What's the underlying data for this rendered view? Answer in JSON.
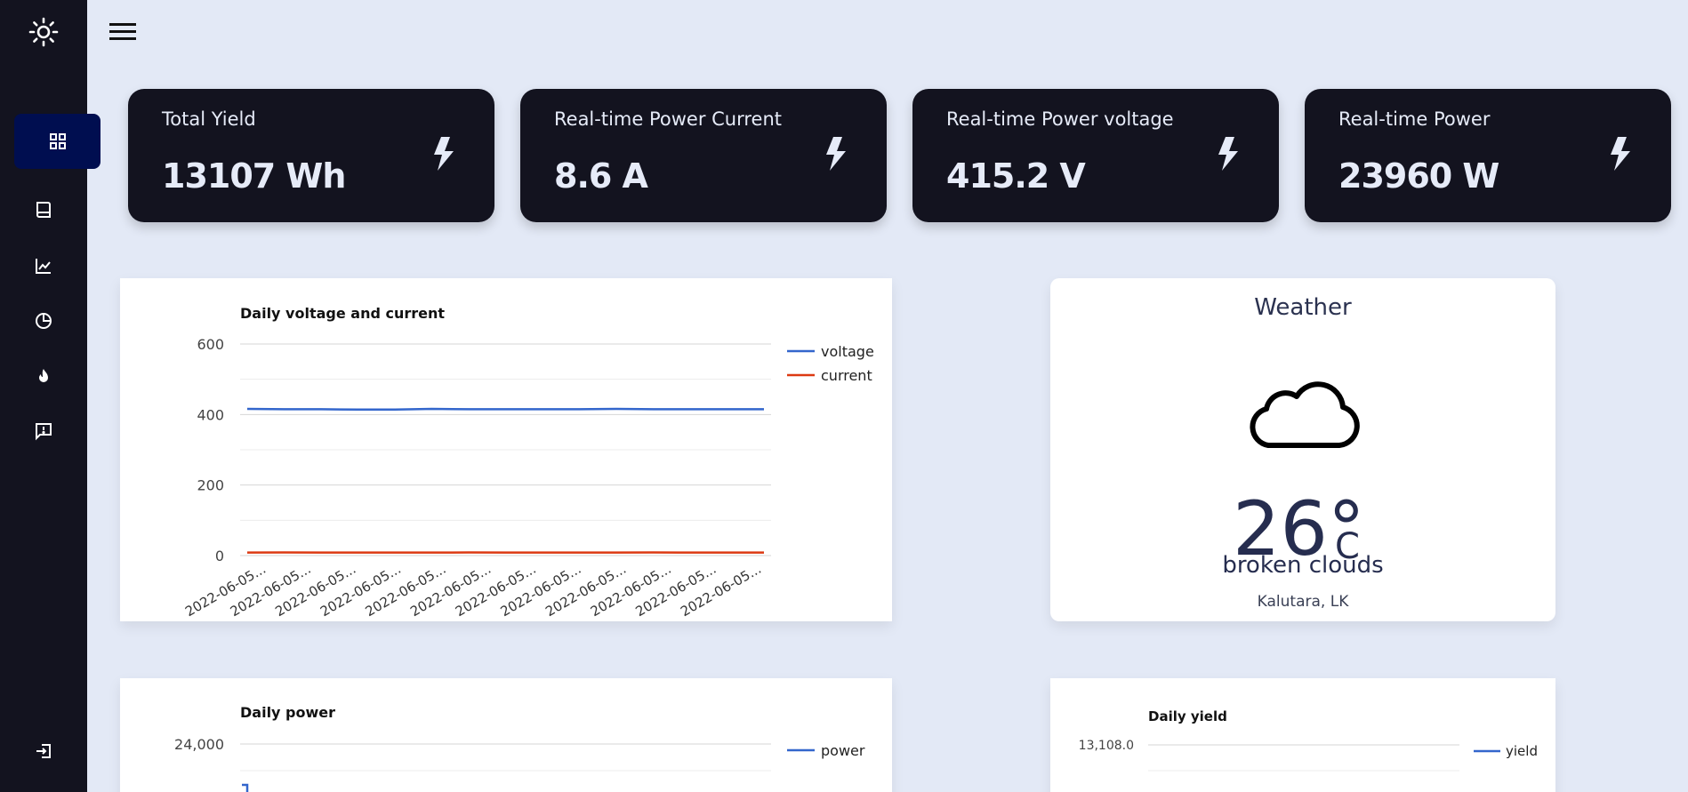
{
  "sidebar": {
    "logo_icon": "sun-icon",
    "items": [
      {
        "name": "dashboard",
        "icon": "grid-icon",
        "active": true
      },
      {
        "name": "book",
        "icon": "book-icon",
        "active": false
      },
      {
        "name": "analytics",
        "icon": "line-chart-icon",
        "active": false
      },
      {
        "name": "reports",
        "icon": "pie-chart-icon",
        "active": false
      },
      {
        "name": "fire",
        "icon": "flame-icon",
        "active": false
      },
      {
        "name": "feedback",
        "icon": "message-alert-icon",
        "active": false
      }
    ],
    "logout_icon": "logout-icon"
  },
  "stats": [
    {
      "title": "Total Yield",
      "value": "13107 Wh",
      "icon": "bolt-icon"
    },
    {
      "title": "Real-time Power Current",
      "value": "8.6 A",
      "icon": "bolt-icon"
    },
    {
      "title": "Real-time Power voltage",
      "value": "415.2 V",
      "icon": "bolt-icon"
    },
    {
      "title": "Real-time Power",
      "value": "23960 W",
      "icon": "bolt-icon"
    }
  ],
  "weather": {
    "title": "Weather",
    "icon": "cloud-icon",
    "temperature": "26°",
    "unit": "C",
    "description": "broken clouds",
    "location": "Kalutara, LK"
  },
  "colors": {
    "voltage": "#3366cc",
    "current": "#dc3912",
    "power": "#3366cc",
    "yield": "#3366cc",
    "card_bg": "#13131f",
    "active_nav": "#000e50"
  },
  "chart_data": [
    {
      "type": "line",
      "title": "Daily voltage and current",
      "x": [
        "2022-06-05...",
        "2022-06-05...",
        "2022-06-05...",
        "2022-06-05...",
        "2022-06-05...",
        "2022-06-05...",
        "2022-06-05...",
        "2022-06-05...",
        "2022-06-05...",
        "2022-06-05...",
        "2022-06-05...",
        "2022-06-05...",
        "2022-06-05...",
        "2022-06-05...",
        "2022-06-05..."
      ],
      "series": [
        {
          "name": "voltage",
          "values": [
            416,
            415,
            415,
            414,
            414,
            416,
            415,
            415,
            415,
            415,
            416,
            415,
            415,
            415,
            415
          ]
        },
        {
          "name": "current",
          "values": [
            8.6,
            8.7,
            8.6,
            8.5,
            8.6,
            8.6,
            8.7,
            8.6,
            8.5,
            8.6,
            8.6,
            8.7,
            8.6,
            8.6,
            8.6
          ]
        }
      ],
      "y_ticks": [
        "0",
        "200",
        "400",
        "600"
      ],
      "ylim": [
        0,
        600
      ],
      "grid": true,
      "legend": "right"
    },
    {
      "type": "line",
      "title": "Daily power",
      "series": [
        {
          "name": "power"
        }
      ],
      "y_ticks": [
        "24,000"
      ],
      "grid": true,
      "legend": "right"
    },
    {
      "type": "line",
      "title": "Daily yield",
      "series": [
        {
          "name": "yield"
        }
      ],
      "y_ticks": [
        "13,108.0"
      ],
      "grid": true,
      "legend": "right"
    }
  ]
}
